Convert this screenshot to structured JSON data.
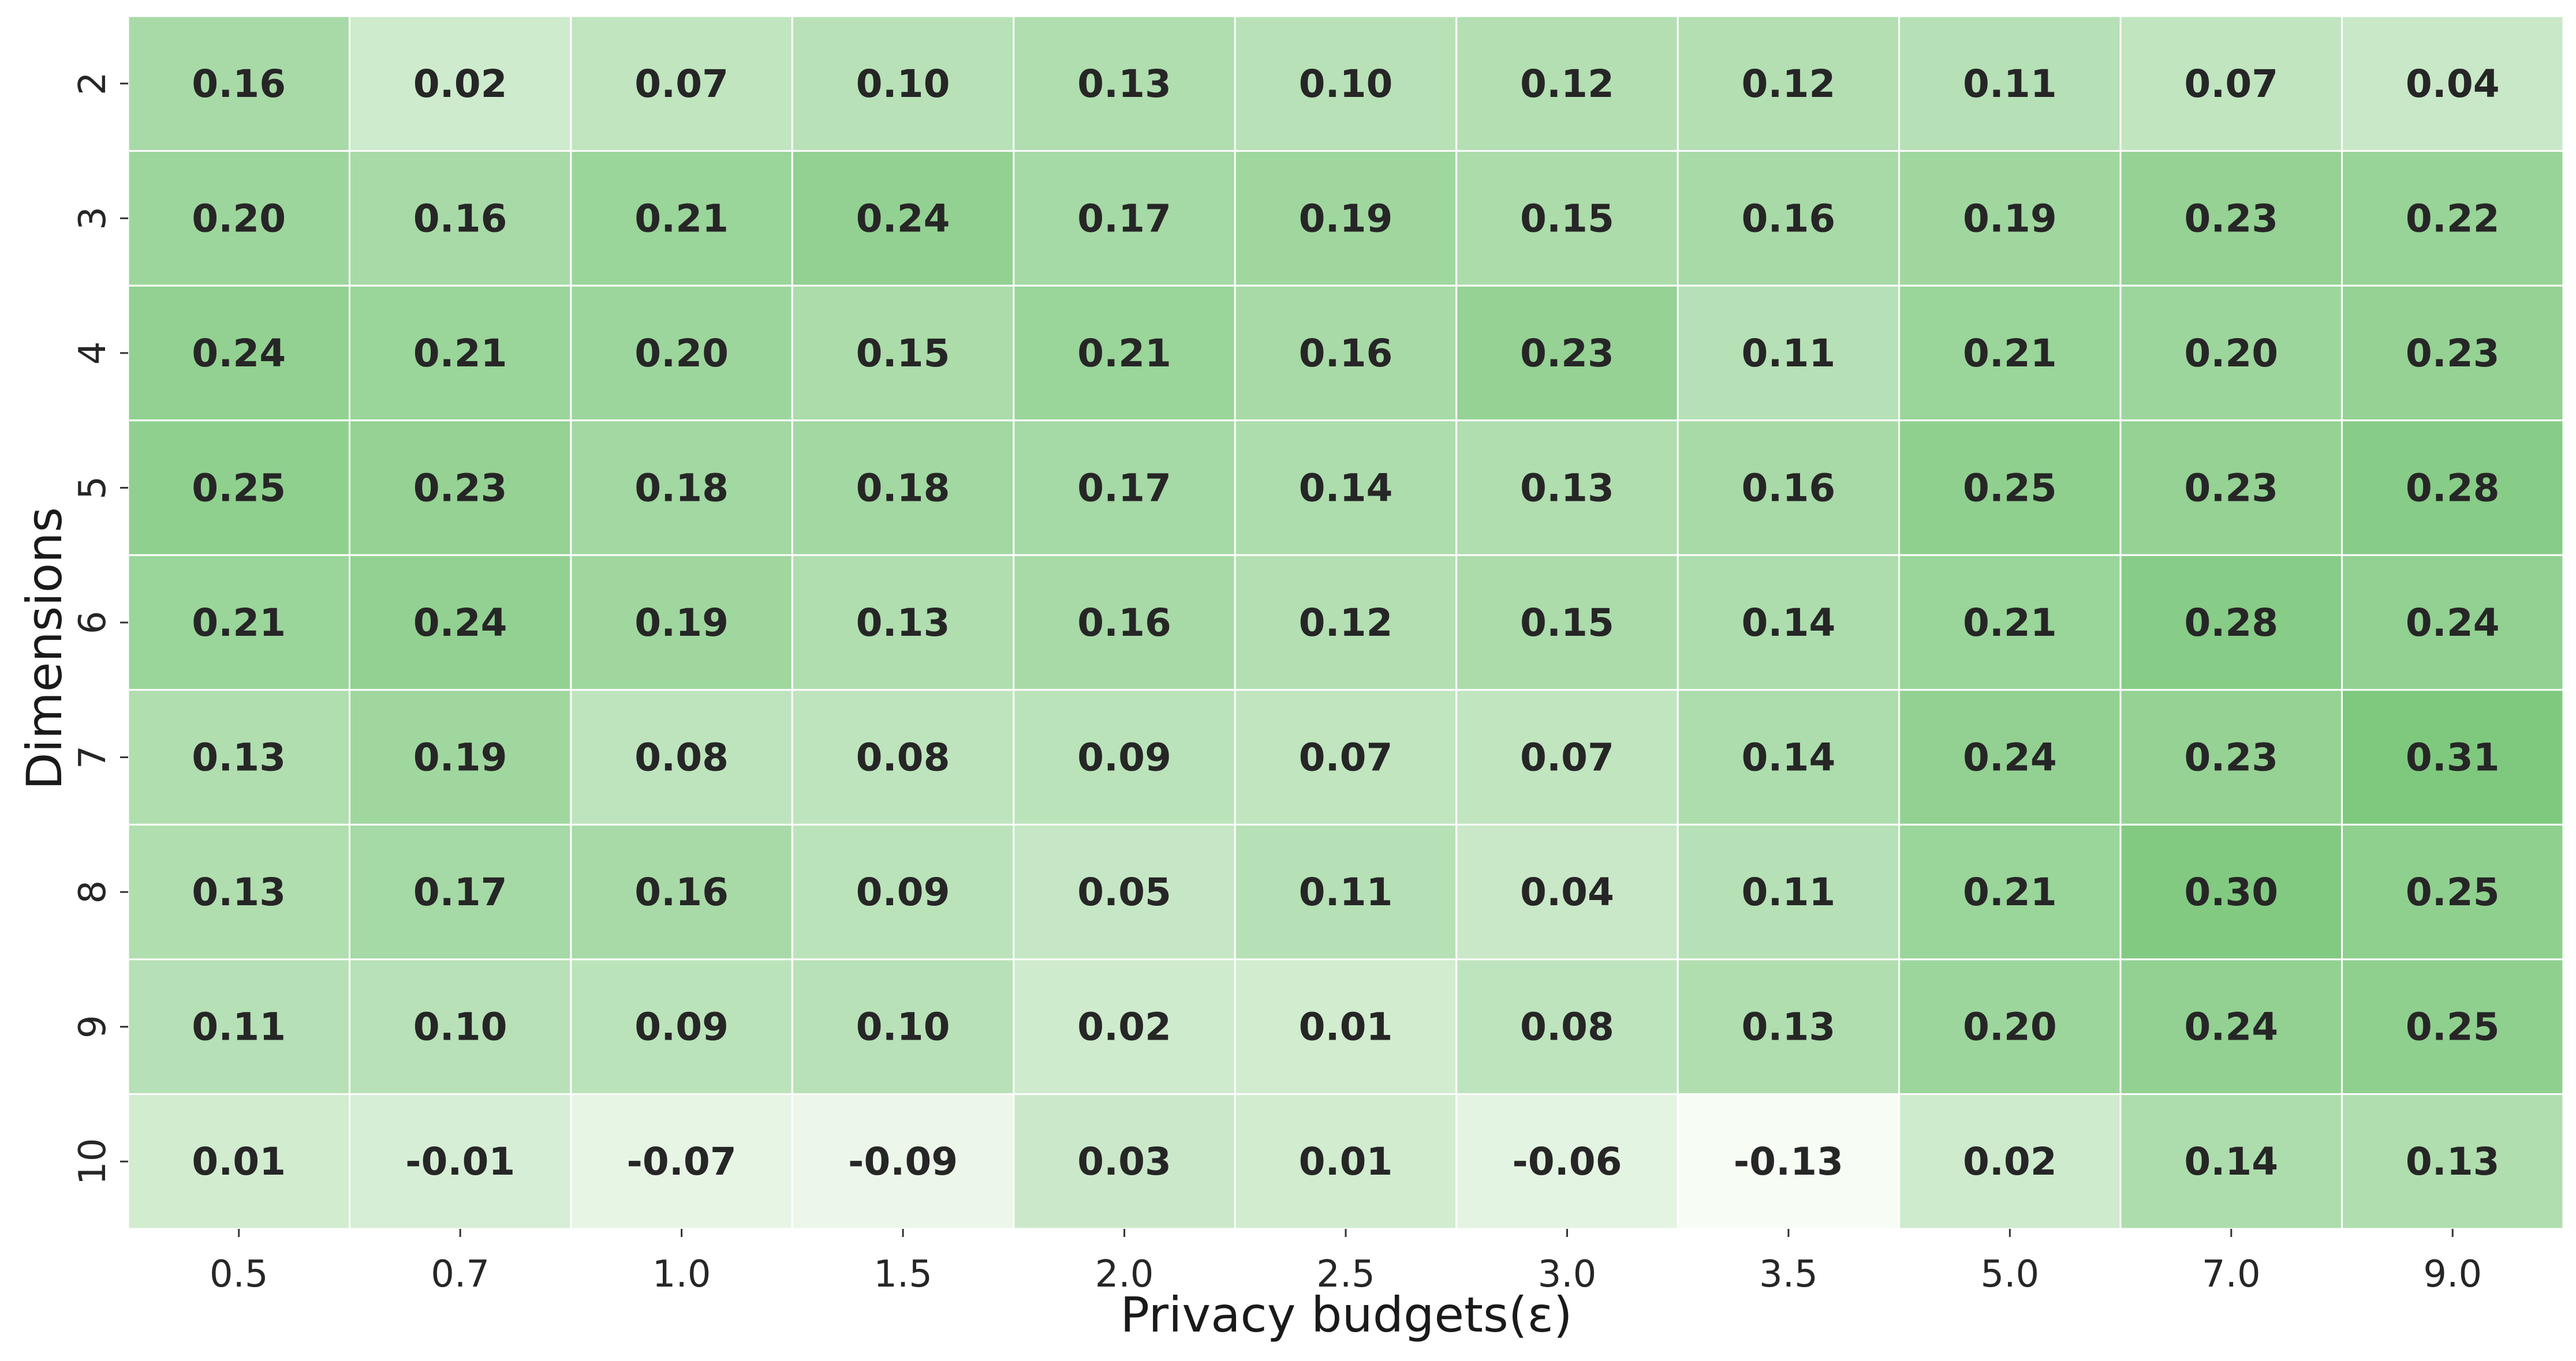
{
  "chart_data": {
    "type": "heatmap",
    "title": "",
    "xlabel": "Privacy budgets(ε)",
    "ylabel": "Dimensions",
    "x_categories": [
      "0.5",
      "0.7",
      "1.0",
      "1.5",
      "2.0",
      "2.5",
      "3.0",
      "3.5",
      "5.0",
      "7.0",
      "9.0"
    ],
    "y_categories": [
      "2",
      "3",
      "4",
      "5",
      "6",
      "7",
      "8",
      "9",
      "10"
    ],
    "values": [
      [
        "0.16",
        "0.02",
        "0.07",
        "0.10",
        "0.13",
        "0.10",
        "0.12",
        "0.12",
        "0.11",
        "0.07",
        "0.04"
      ],
      [
        "0.20",
        "0.16",
        "0.21",
        "0.24",
        "0.17",
        "0.19",
        "0.15",
        "0.16",
        "0.19",
        "0.23",
        "0.22"
      ],
      [
        "0.24",
        "0.21",
        "0.20",
        "0.15",
        "0.21",
        "0.16",
        "0.23",
        "0.11",
        "0.21",
        "0.20",
        "0.23"
      ],
      [
        "0.25",
        "0.23",
        "0.18",
        "0.18",
        "0.17",
        "0.14",
        "0.13",
        "0.16",
        "0.25",
        "0.23",
        "0.28"
      ],
      [
        "0.21",
        "0.24",
        "0.19",
        "0.13",
        "0.16",
        "0.12",
        "0.15",
        "0.14",
        "0.21",
        "0.28",
        "0.24"
      ],
      [
        "0.13",
        "0.19",
        "0.08",
        "0.08",
        "0.09",
        "0.07",
        "0.07",
        "0.14",
        "0.24",
        "0.23",
        "0.31"
      ],
      [
        "0.13",
        "0.17",
        "0.16",
        "0.09",
        "0.05",
        "0.11",
        "0.04",
        "0.11",
        "0.21",
        "0.30",
        "0.25"
      ],
      [
        "0.11",
        "0.10",
        "0.09",
        "0.10",
        "0.02",
        "0.01",
        "0.08",
        "0.13",
        "0.20",
        "0.24",
        "0.25"
      ],
      [
        "0.01",
        "-0.01",
        "-0.07",
        "-0.09",
        "0.03",
        "0.01",
        "-0.06",
        "-0.13",
        "0.02",
        "0.14",
        "0.13"
      ]
    ],
    "color_range": [
      -0.13,
      0.31
    ],
    "colormap": {
      "low": "#f7fcf5",
      "high": "#7fc97f"
    },
    "cell_border_color": "#ffffff",
    "grid": false,
    "legend": "none",
    "annotations": "cell values shown in bold"
  }
}
